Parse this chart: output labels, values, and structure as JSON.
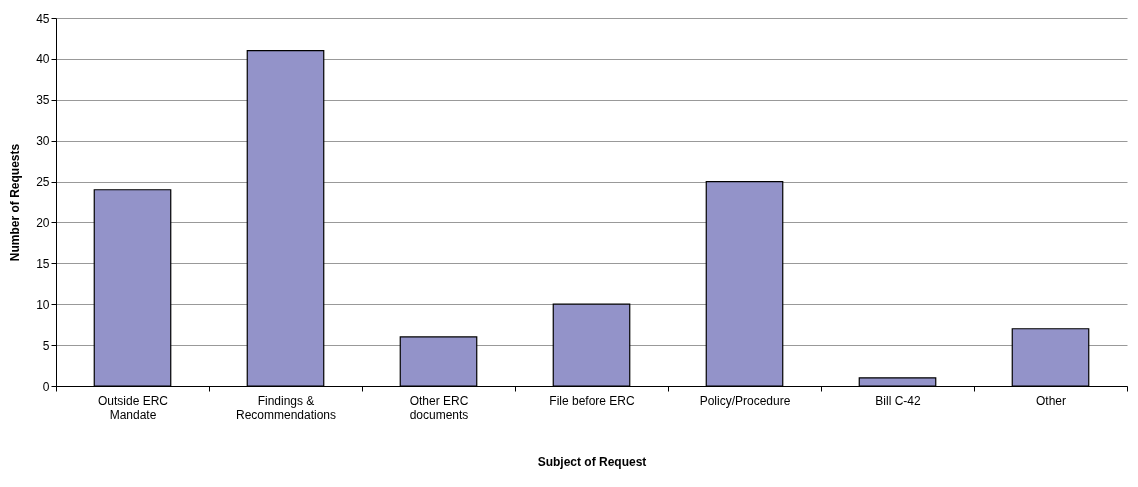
{
  "chart_data": {
    "type": "bar",
    "xlabel": "Subject of Request",
    "ylabel": "Number of Requests",
    "categories": [
      "Outside ERC\nMandate",
      "Findings &\nRecommendations",
      "Other ERC\ndocuments",
      "File before ERC",
      "Policy/Procedure",
      "Bill C-42",
      "Other"
    ],
    "values": [
      24,
      41,
      6,
      10,
      25,
      1,
      7
    ],
    "color": "#9393c9",
    "ylim": [
      0,
      45
    ],
    "yticks": [
      0,
      5,
      10,
      15,
      20,
      25,
      30,
      35,
      40,
      45
    ],
    "grid": "y"
  }
}
